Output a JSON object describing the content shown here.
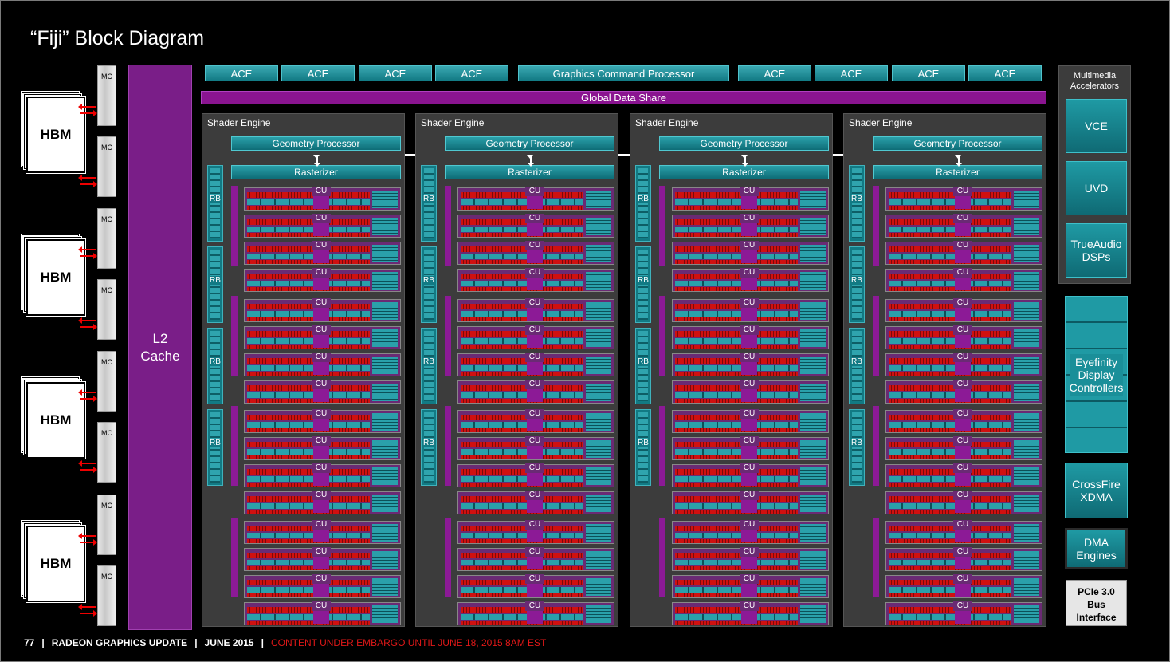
{
  "title": "“Fiji” Block Diagram",
  "hbm_label": "HBM",
  "mc_label": "MC",
  "l2_cache": {
    "line1": "L2",
    "line2": "Cache"
  },
  "top_bar": {
    "ace_label": "ACE",
    "gcp_label": "Graphics Command Processor"
  },
  "global_data_share": "Global Data Share",
  "shader_engine": {
    "label": "Shader Engine",
    "geometry_processor": "Geometry Processor",
    "rasterizer": "Rasterizer",
    "rb_label": "RB",
    "cu_label": "CU",
    "count": 4,
    "cus_per_engine": 16
  },
  "multimedia": {
    "title_line1": "Multimedia",
    "title_line2": "Accelerators",
    "vce": "VCE",
    "uvd": "UVD",
    "trueaudio_line1": "TrueAudio",
    "trueaudio_line2": "DSPs"
  },
  "eyefinity": {
    "line1": "Eyefinity",
    "line2": "Display",
    "line3": "Controllers"
  },
  "crossfire": {
    "line1": "CrossFire",
    "line2": "XDMA"
  },
  "dma": {
    "line1": "DMA",
    "line2": "Engines"
  },
  "pcie": {
    "line1": "PCIe 3.0",
    "line2": "Bus",
    "line3": "Interface"
  },
  "footer": {
    "page": "77",
    "section": "RADEON GRAPHICS UPDATE",
    "date": "JUNE  2015",
    "embargo": "CONTENT UNDER EMBARGO UNTIL JUNE 18, 2015 8AM EST"
  }
}
